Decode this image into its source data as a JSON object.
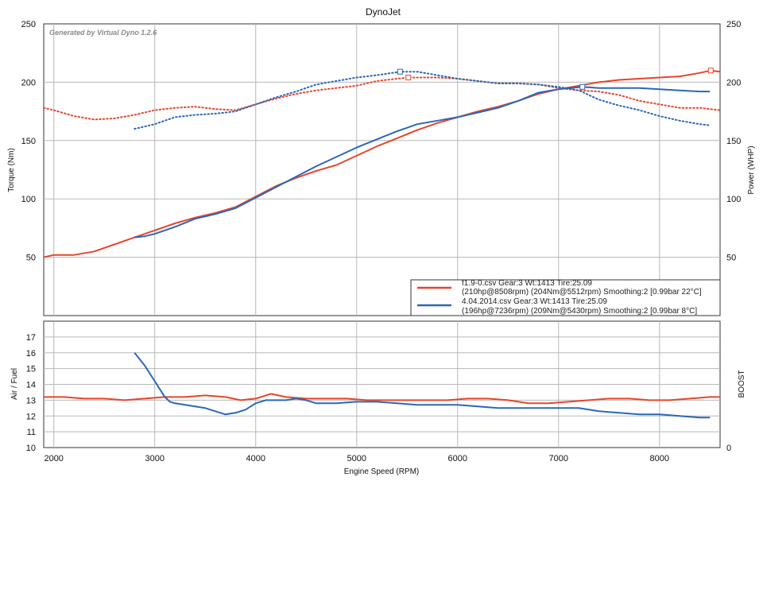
{
  "colors": {
    "run1": "#e8452b",
    "run2": "#2a68b8"
  },
  "chart_data": [
    {
      "type": "line",
      "title": "DynoJet",
      "watermark": "Generated by Virtual Dyno 1.2.6",
      "xlabel": "Engine Speed (RPM)",
      "ylabel": "Torque (Nm)",
      "y2label": "Power (WHP)",
      "xlim": [
        1900,
        8600
      ],
      "ylim": [
        0,
        250
      ],
      "y2lim": [
        0,
        250
      ],
      "yticks": [
        50,
        100,
        150,
        200,
        250
      ],
      "y2ticks": [
        50,
        100,
        150,
        200,
        250
      ],
      "grid": true,
      "legend": [
        {
          "series": "run1",
          "line1": "f1.9-0.csv Gear:3 Wt:1413 Tire:25.09",
          "line2": "(210hp@8508rpm) (204Nm@5512rpm) Smoothing:2 [0.99bar 22°C]"
        },
        {
          "series": "run2",
          "line1": "4.04.2014.csv Gear:3 Wt:1413 Tire:25.09",
          "line2": "(196hp@7236rpm) (209Nm@5430rpm) Smoothing:2 [0.99bar 8°C]"
        }
      ],
      "legend_placement": "bottom-right",
      "series": [
        {
          "id": "run1_power",
          "color_key": "run1",
          "style": "solid",
          "axis": "y2",
          "x": [
            1900,
            2000,
            2200,
            2400,
            2600,
            2800,
            3000,
            3200,
            3400,
            3600,
            3800,
            4000,
            4200,
            4400,
            4600,
            4800,
            5000,
            5200,
            5400,
            5600,
            5800,
            6000,
            6200,
            6400,
            6600,
            6800,
            7000,
            7200,
            7400,
            7600,
            7800,
            8000,
            8200,
            8400,
            8508,
            8600
          ],
          "y": [
            50,
            52,
            52,
            55,
            61,
            67,
            73,
            79,
            84,
            88,
            93,
            102,
            111,
            118,
            124,
            129,
            137,
            145,
            152,
            159,
            165,
            170,
            175,
            179,
            184,
            190,
            194,
            197,
            200,
            202,
            203,
            204,
            205,
            208,
            210,
            209
          ]
        },
        {
          "id": "run1_torque",
          "color_key": "run1",
          "style": "dotted",
          "axis": "y",
          "x": [
            1900,
            2000,
            2200,
            2400,
            2600,
            2800,
            3000,
            3200,
            3400,
            3600,
            3800,
            4000,
            4200,
            4400,
            4600,
            4800,
            5000,
            5200,
            5400,
            5512,
            5600,
            5800,
            6000,
            6200,
            6400,
            6600,
            6800,
            7000,
            7200,
            7400,
            7600,
            7800,
            8000,
            8200,
            8400,
            8600
          ],
          "y": [
            178,
            176,
            171,
            168,
            169,
            172,
            176,
            178,
            179,
            177,
            176,
            181,
            186,
            190,
            193,
            195,
            197,
            201,
            203,
            204,
            204,
            204,
            203,
            201,
            199,
            199,
            198,
            195,
            193,
            192,
            189,
            184,
            181,
            178,
            178,
            176
          ]
        },
        {
          "id": "run2_power",
          "color_key": "run2",
          "style": "solid",
          "axis": "y2",
          "x": [
            2800,
            2900,
            3000,
            3200,
            3400,
            3600,
            3800,
            4000,
            4200,
            4400,
            4600,
            4800,
            5000,
            5200,
            5400,
            5600,
            5800,
            6000,
            6200,
            6400,
            6600,
            6800,
            7000,
            7236,
            7400,
            7600,
            7800,
            8000,
            8200,
            8400,
            8500
          ],
          "y": [
            67,
            68,
            70,
            76,
            83,
            87,
            92,
            101,
            110,
            119,
            128,
            136,
            144,
            151,
            158,
            164,
            167,
            170,
            174,
            178,
            184,
            191,
            194,
            196,
            195,
            195,
            195,
            194,
            193,
            192,
            192
          ]
        },
        {
          "id": "run2_torque",
          "color_key": "run2",
          "style": "dotted",
          "axis": "y",
          "x": [
            2800,
            3000,
            3200,
            3400,
            3600,
            3800,
            4000,
            4200,
            4400,
            4600,
            4800,
            5000,
            5200,
            5430,
            5600,
            5800,
            6000,
            6200,
            6400,
            6600,
            6800,
            7000,
            7200,
            7400,
            7600,
            7800,
            8000,
            8200,
            8400,
            8500
          ],
          "y": [
            160,
            164,
            170,
            172,
            173,
            175,
            181,
            187,
            192,
            198,
            201,
            204,
            206,
            209,
            209,
            206,
            203,
            201,
            199,
            199,
            198,
            196,
            193,
            185,
            180,
            176,
            171,
            167,
            164,
            163
          ]
        }
      ]
    },
    {
      "type": "line",
      "xlabel": "Engine Speed (RPM)",
      "ylabel": "Air / Fuel",
      "y2label": "BOOST",
      "xlim": [
        1900,
        8600
      ],
      "ylim": [
        10,
        18
      ],
      "yticks": [
        10,
        11,
        12,
        13,
        14,
        15,
        16,
        17
      ],
      "y2tick_label": "0",
      "xticks": [
        2000,
        3000,
        4000,
        5000,
        6000,
        7000,
        8000
      ],
      "grid": true,
      "series": [
        {
          "id": "run1_afr",
          "color_key": "run1",
          "style": "solid",
          "x": [
            1900,
            2100,
            2300,
            2500,
            2700,
            2900,
            3100,
            3300,
            3500,
            3700,
            3850,
            4000,
            4150,
            4300,
            4500,
            4700,
            4900,
            5100,
            5300,
            5500,
            5700,
            5900,
            6100,
            6300,
            6500,
            6700,
            6900,
            7100,
            7300,
            7500,
            7700,
            7900,
            8100,
            8300,
            8500,
            8600
          ],
          "y": [
            13.2,
            13.2,
            13.1,
            13.1,
            13.0,
            13.1,
            13.2,
            13.2,
            13.3,
            13.2,
            13.0,
            13.1,
            13.4,
            13.2,
            13.1,
            13.1,
            13.1,
            13.0,
            13.0,
            13.0,
            13.0,
            13.0,
            13.1,
            13.1,
            13.0,
            12.8,
            12.8,
            12.9,
            13.0,
            13.1,
            13.1,
            13.0,
            13.0,
            13.1,
            13.2,
            13.2
          ]
        },
        {
          "id": "run2_afr",
          "color_key": "run2",
          "style": "solid",
          "x": [
            2800,
            2900,
            3000,
            3100,
            3150,
            3200,
            3300,
            3400,
            3500,
            3600,
            3700,
            3800,
            3900,
            4000,
            4100,
            4200,
            4300,
            4400,
            4500,
            4600,
            4800,
            5000,
            5200,
            5400,
            5600,
            5800,
            6000,
            6200,
            6400,
            6600,
            6800,
            7000,
            7200,
            7400,
            7600,
            7800,
            8000,
            8200,
            8400,
            8500
          ],
          "y": [
            16.0,
            15.2,
            14.2,
            13.2,
            12.9,
            12.8,
            12.7,
            12.6,
            12.5,
            12.3,
            12.1,
            12.2,
            12.4,
            12.8,
            13.0,
            13.0,
            13.0,
            13.1,
            13.0,
            12.8,
            12.8,
            12.9,
            12.9,
            12.8,
            12.7,
            12.7,
            12.7,
            12.6,
            12.5,
            12.5,
            12.5,
            12.5,
            12.5,
            12.3,
            12.2,
            12.1,
            12.1,
            12.0,
            11.9,
            11.9
          ]
        }
      ]
    }
  ]
}
